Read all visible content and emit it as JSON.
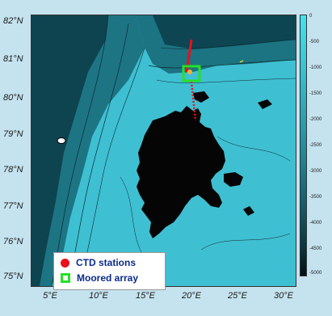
{
  "map": {
    "latitudes": [
      {
        "deg": "82",
        "label": "°N"
      },
      {
        "deg": "81",
        "label": "°N"
      },
      {
        "deg": "80",
        "label": "°N"
      },
      {
        "deg": "79",
        "label": "°N"
      },
      {
        "deg": "78",
        "label": "°N"
      },
      {
        "deg": "77",
        "label": "°N"
      },
      {
        "deg": "76",
        "label": "°N"
      },
      {
        "deg": "75",
        "label": "°N"
      }
    ],
    "longitudes": [
      {
        "deg": "5",
        "label": "°E"
      },
      {
        "deg": "10",
        "label": "°E"
      },
      {
        "deg": "15",
        "label": "°E"
      },
      {
        "deg": "20",
        "label": "°E"
      },
      {
        "deg": "25",
        "label": "°E"
      },
      {
        "deg": "30",
        "label": "°E"
      }
    ],
    "colorbar": {
      "ticks": [
        "0",
        "-500",
        "-1000",
        "-1500",
        "-2000",
        "-2500",
        "-3000",
        "-3500",
        "-4000",
        "-4500",
        "-5000"
      ]
    },
    "legend": {
      "ctd_label": "CTD stations",
      "moored_label": "Moored array"
    },
    "colors": {
      "ocean_shallow": "#40e3f0",
      "ocean_deep": "#021015",
      "land": "#050505",
      "ctd": "#e8111c",
      "moored": "#27e027",
      "legend_text": "#0b2c8c"
    }
  }
}
